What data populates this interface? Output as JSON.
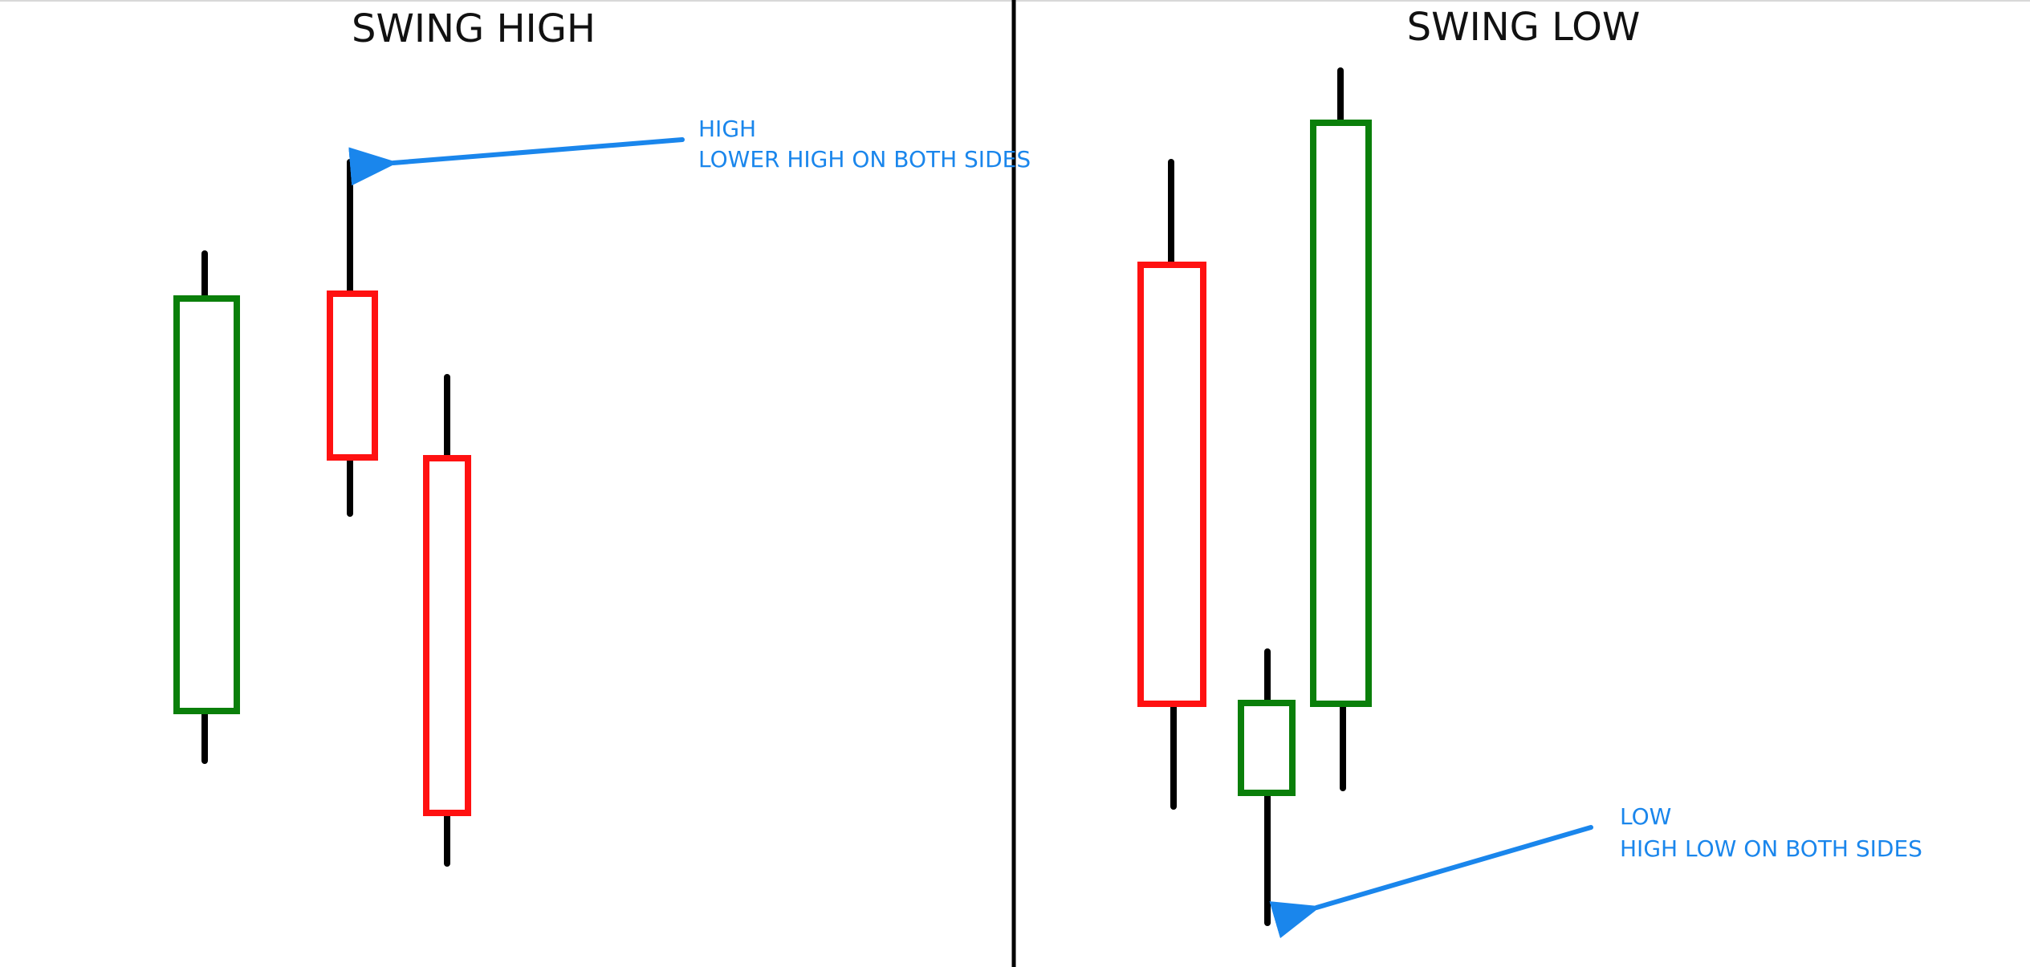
{
  "colors": {
    "bullish": "#0a7f0a",
    "bearish": "#ff1111",
    "wick": "#000000",
    "annotation": "#1a86ec",
    "divider": "#000000"
  },
  "left_panel": {
    "title": "SWING HIGH",
    "annotation": {
      "line1": "HIGH",
      "line2": "LOWER HIGH ON BOTH SIDES"
    },
    "candles": [
      {
        "name": "left-candle-1",
        "direction": "bullish"
      },
      {
        "name": "left-candle-2",
        "direction": "bearish"
      },
      {
        "name": "left-candle-3",
        "direction": "bearish"
      }
    ]
  },
  "right_panel": {
    "title": "SWING LOW",
    "annotation": {
      "line1": "LOW",
      "line2": "HIGH LOW ON BOTH SIDES"
    },
    "candles": [
      {
        "name": "right-candle-1",
        "direction": "bearish"
      },
      {
        "name": "right-candle-2",
        "direction": "bullish"
      },
      {
        "name": "right-candle-3",
        "direction": "bullish"
      }
    ]
  }
}
